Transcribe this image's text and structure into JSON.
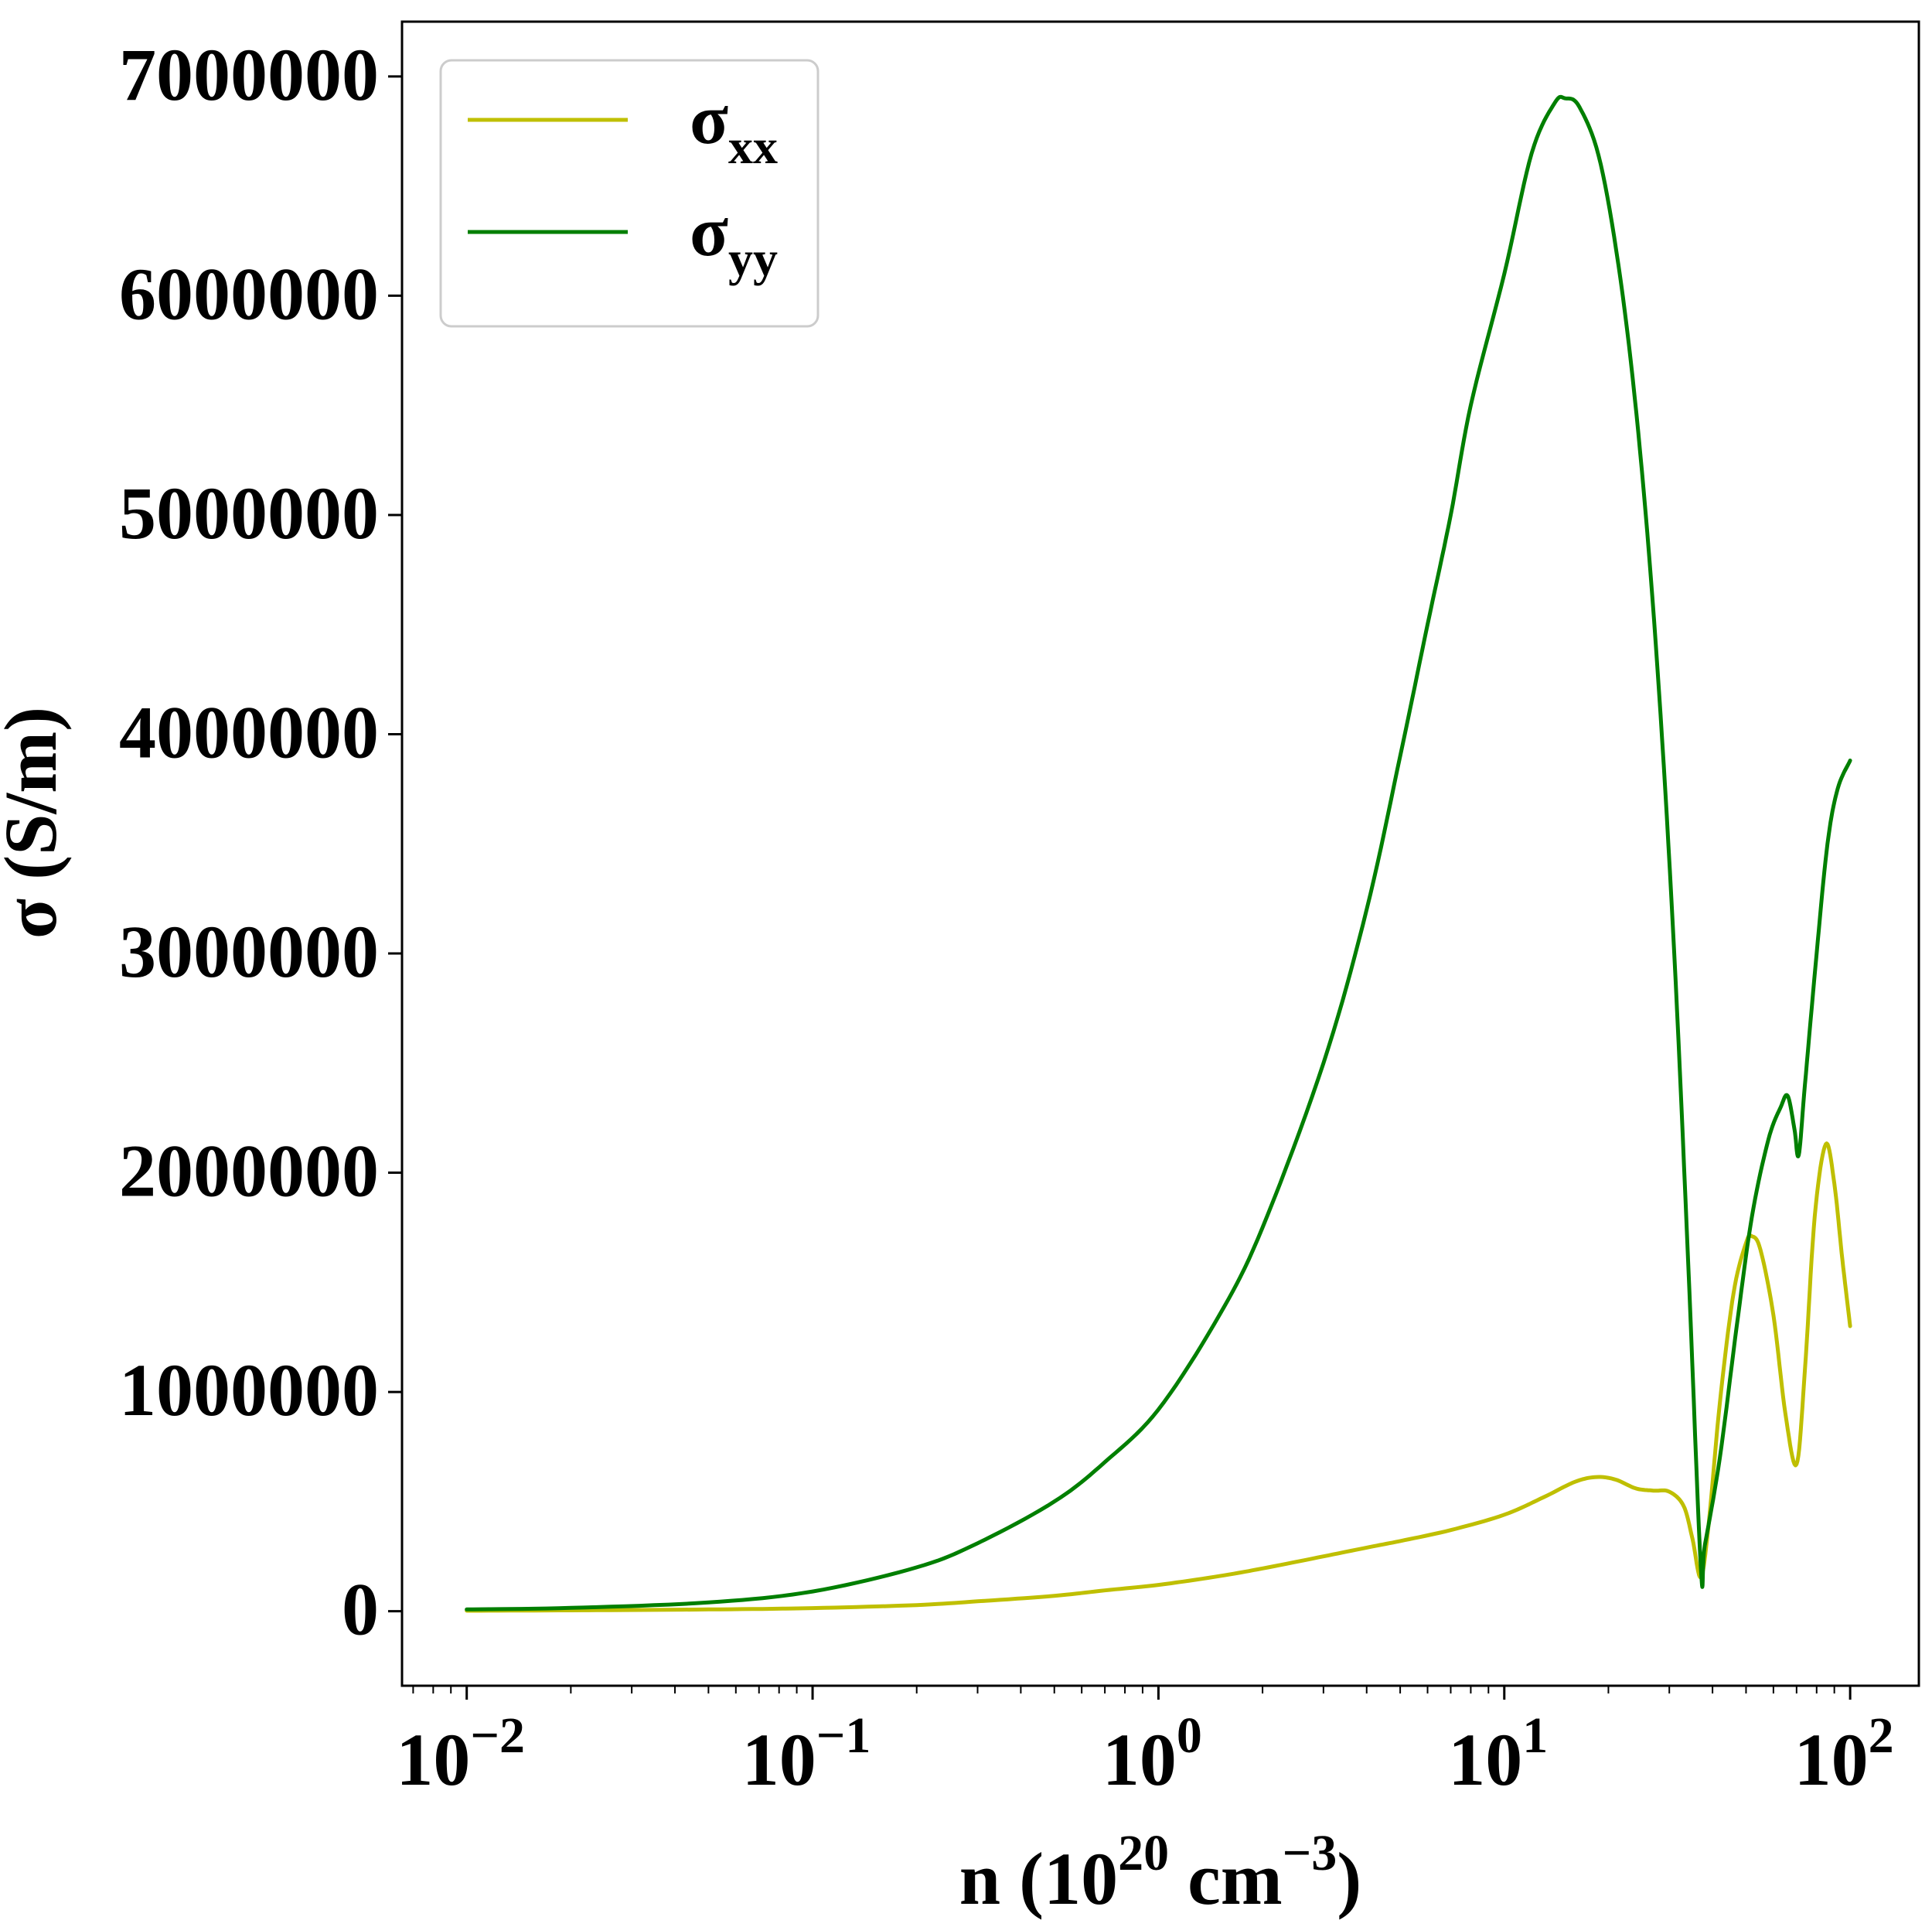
{
  "chart_data": {
    "type": "line",
    "title": "",
    "xlabel": {
      "base": "n (10",
      "exp1": "20",
      "mid": " cm",
      "exp2": "−3",
      "tail": ")"
    },
    "ylabel": "σ (S/m)",
    "x_scale": "log",
    "xlim": [
      0.0065,
      158
    ],
    "ylim": [
      -340000,
      7250000
    ],
    "grid": false,
    "legend_position": "upper-left",
    "x_ticks": [
      {
        "value": 0.01,
        "base": "10",
        "exp": "−2"
      },
      {
        "value": 0.1,
        "base": "10",
        "exp": "−1"
      },
      {
        "value": 1,
        "base": "10",
        "exp": "0"
      },
      {
        "value": 10,
        "base": "10",
        "exp": "1"
      },
      {
        "value": 100,
        "base": "10",
        "exp": "2"
      }
    ],
    "y_ticks": [
      {
        "value": 0,
        "label": "0"
      },
      {
        "value": 1000000,
        "label": "1000000"
      },
      {
        "value": 2000000,
        "label": "2000000"
      },
      {
        "value": 3000000,
        "label": "3000000"
      },
      {
        "value": 4000000,
        "label": "4000000"
      },
      {
        "value": 5000000,
        "label": "5000000"
      },
      {
        "value": 6000000,
        "label": "6000000"
      },
      {
        "value": 7000000,
        "label": "7000000"
      }
    ],
    "series": [
      {
        "name": "σxx",
        "legend_main": "σ",
        "legend_sub": "xx",
        "color": "#bfbf00",
        "points": [
          [
            0.01,
            2000
          ],
          [
            0.02,
            4000
          ],
          [
            0.05,
            8000
          ],
          [
            0.1,
            14000
          ],
          [
            0.2,
            28000
          ],
          [
            0.3,
            45000
          ],
          [
            0.5,
            70000
          ],
          [
            0.7,
            95000
          ],
          [
            1.0,
            120000
          ],
          [
            1.5,
            160000
          ],
          [
            2.0,
            195000
          ],
          [
            3.0,
            250000
          ],
          [
            4.0,
            290000
          ],
          [
            5.0,
            320000
          ],
          [
            7.0,
            370000
          ],
          [
            10.0,
            440000
          ],
          [
            13.0,
            520000
          ],
          [
            16.0,
            590000
          ],
          [
            18.5,
            612000
          ],
          [
            21.0,
            600000
          ],
          [
            24.0,
            560000
          ],
          [
            27.0,
            550000
          ],
          [
            30.0,
            545000
          ],
          [
            33.0,
            480000
          ],
          [
            35.0,
            330000
          ],
          [
            37.0,
            155000
          ],
          [
            39.0,
            400000
          ],
          [
            42.0,
            950000
          ],
          [
            46.0,
            1450000
          ],
          [
            50.0,
            1680000
          ],
          [
            52.0,
            1710000
          ],
          [
            55.0,
            1650000
          ],
          [
            60.0,
            1350000
          ],
          [
            65.0,
            900000
          ],
          [
            70.0,
            670000
          ],
          [
            74.0,
            1100000
          ],
          [
            79.0,
            1800000
          ],
          [
            85.0,
            2130000
          ],
          [
            90.0,
            1950000
          ],
          [
            95.0,
            1600000
          ],
          [
            100.0,
            1300000
          ]
        ]
      },
      {
        "name": "σyy",
        "legend_main": "σ",
        "legend_sub": "yy",
        "color": "#007f00",
        "points": [
          [
            0.01,
            8000
          ],
          [
            0.02,
            15000
          ],
          [
            0.05,
            40000
          ],
          [
            0.1,
            90000
          ],
          [
            0.2,
            200000
          ],
          [
            0.3,
            310000
          ],
          [
            0.5,
            500000
          ],
          [
            0.7,
            680000
          ],
          [
            1.0,
            920000
          ],
          [
            1.5,
            1350000
          ],
          [
            2.0,
            1750000
          ],
          [
            3.0,
            2500000
          ],
          [
            4.0,
            3200000
          ],
          [
            5.0,
            3900000
          ],
          [
            6.0,
            4500000
          ],
          [
            7.0,
            5000000
          ],
          [
            8.0,
            5500000
          ],
          [
            10.0,
            6100000
          ],
          [
            12.0,
            6650000
          ],
          [
            14.0,
            6880000
          ],
          [
            15.0,
            6900000
          ],
          [
            16.5,
            6860000
          ],
          [
            19.0,
            6600000
          ],
          [
            22.0,
            6000000
          ],
          [
            25.0,
            5200000
          ],
          [
            28.0,
            4200000
          ],
          [
            31.0,
            3000000
          ],
          [
            34.0,
            1600000
          ],
          [
            37.0,
            200000
          ],
          [
            38.0,
            300000
          ],
          [
            42.0,
            700000
          ],
          [
            47.0,
            1300000
          ],
          [
            52.0,
            1800000
          ],
          [
            58.0,
            2150000
          ],
          [
            63.0,
            2300000
          ],
          [
            66.0,
            2350000
          ],
          [
            69.0,
            2200000
          ],
          [
            71.0,
            2080000
          ],
          [
            74.0,
            2400000
          ],
          [
            80.0,
            3000000
          ],
          [
            86.0,
            3500000
          ],
          [
            92.0,
            3750000
          ],
          [
            100.0,
            3880000
          ]
        ]
      }
    ]
  }
}
